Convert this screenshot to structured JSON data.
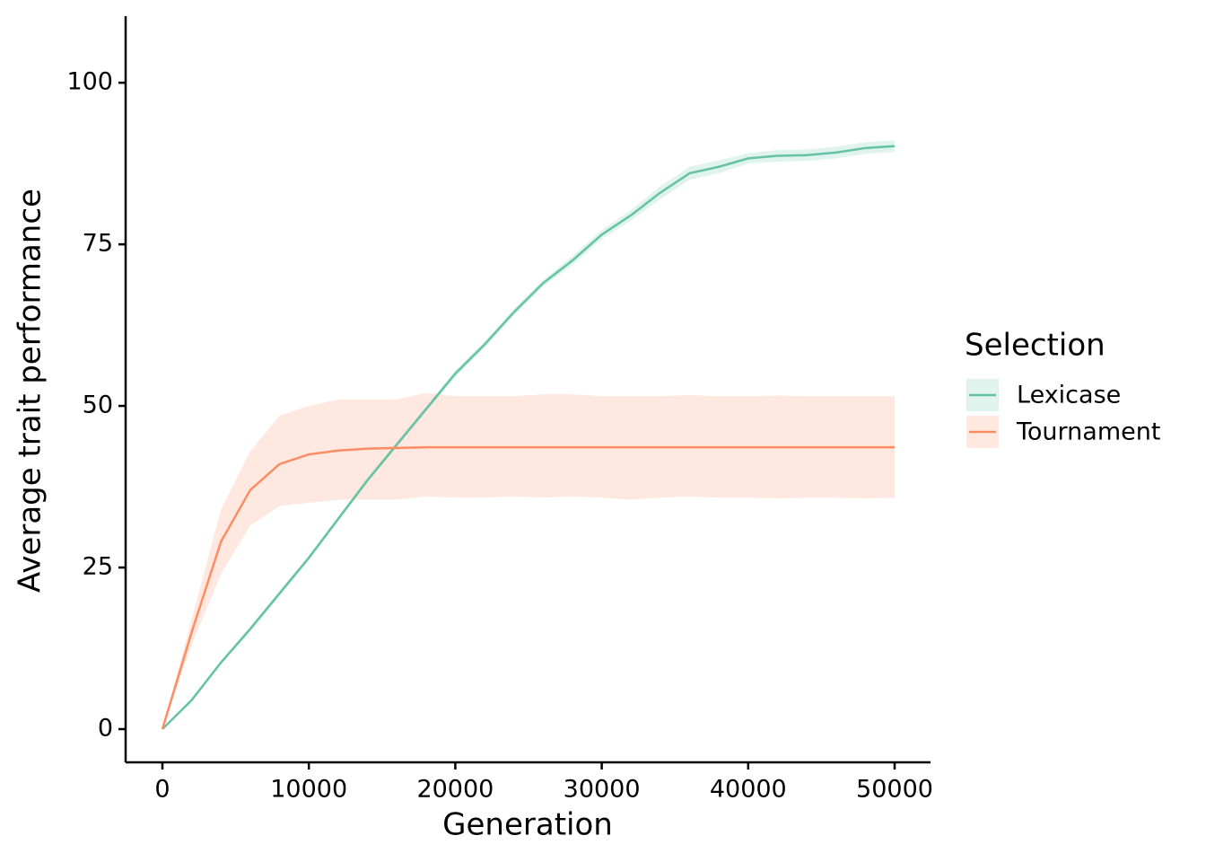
{
  "chart_data": {
    "type": "line",
    "x_label": "Generation",
    "y_label": "Average trait performance",
    "legend_title": "Selection",
    "legend_position": "right",
    "x": [
      0,
      2000,
      4000,
      6000,
      8000,
      10000,
      12000,
      14000,
      16000,
      18000,
      20000,
      22000,
      24000,
      26000,
      28000,
      30000,
      32000,
      34000,
      36000,
      38000,
      40000,
      42000,
      44000,
      46000,
      48000,
      50000
    ],
    "series": [
      {
        "name": "Lexicase",
        "color": "#66c2a5",
        "values": [
          0,
          4.5,
          10.3,
          15.5,
          21,
          26.5,
          32.5,
          38.5,
          44,
          49.5,
          55,
          59.5,
          64.5,
          69,
          72.5,
          76.5,
          79.5,
          83,
          86,
          87,
          88.3,
          88.7,
          88.8,
          89.2,
          89.9,
          90.2
        ],
        "lower": [
          0,
          4.2,
          10,
          15.1,
          20.6,
          26.1,
          32.1,
          38.1,
          43.6,
          49.1,
          54.5,
          59,
          64,
          68.5,
          71.8,
          75.8,
          78.7,
          82,
          85,
          86,
          87.5,
          87.8,
          87.9,
          88.3,
          89,
          89.3
        ],
        "upper": [
          0,
          4.8,
          10.6,
          15.9,
          21.4,
          26.9,
          32.9,
          38.9,
          44.4,
          49.9,
          55.5,
          60,
          65,
          69.5,
          73.2,
          77.2,
          80.3,
          84,
          87,
          88,
          89.1,
          89.6,
          89.7,
          90.1,
          90.8,
          91.1
        ]
      },
      {
        "name": "Tournament",
        "color": "#fc8d62",
        "values": [
          0,
          15,
          29,
          37,
          41,
          42.5,
          43.1,
          43.4,
          43.5,
          43.6,
          43.6,
          43.6,
          43.6,
          43.6,
          43.6,
          43.6,
          43.6,
          43.6,
          43.6,
          43.6,
          43.6,
          43.6,
          43.6,
          43.6,
          43.6,
          43.6
        ],
        "lower": [
          0,
          13,
          24,
          31.5,
          34.5,
          35,
          35.5,
          35.5,
          35.5,
          36,
          35.8,
          35.8,
          36,
          35.8,
          36,
          35.8,
          35.5,
          35.8,
          36,
          35.8,
          35.8,
          35.7,
          35.8,
          35.8,
          35.7,
          35.8
        ],
        "upper": [
          0,
          17,
          34,
          43,
          48.5,
          50,
          51,
          51,
          51,
          52,
          51.5,
          51.5,
          51.5,
          51.8,
          51.8,
          51.5,
          51.5,
          51.5,
          51.7,
          51.5,
          51.5,
          51.6,
          51.5,
          51.5,
          51.5,
          51.5
        ]
      }
    ],
    "xlim": [
      -2512,
      52451
    ],
    "ylim": [
      -5.14,
      110.3
    ],
    "xticks": [
      0,
      10000,
      20000,
      30000,
      40000,
      50000
    ],
    "yticks": [
      0,
      25,
      50,
      75,
      100
    ],
    "grid": false
  }
}
